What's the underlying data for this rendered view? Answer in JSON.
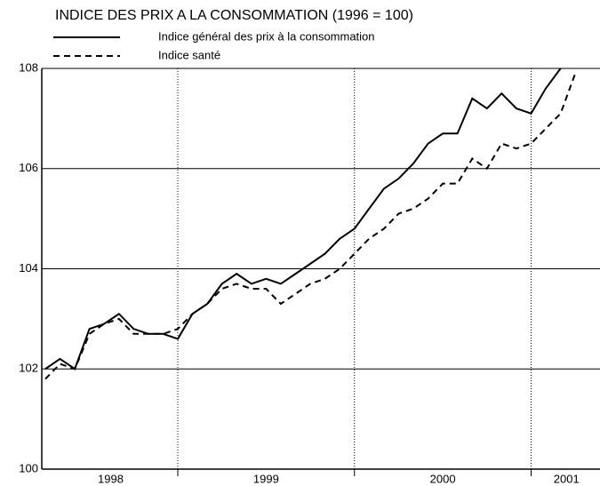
{
  "chart_data": {
    "type": "line",
    "title": "INDICE DES PRIX A LA CONSOMMATION (1996 = 100)",
    "x": [
      1998.25,
      1998.333,
      1998.417,
      1998.5,
      1998.583,
      1998.667,
      1998.75,
      1998.833,
      1998.917,
      1999.0,
      1999.083,
      1999.167,
      1999.25,
      1999.333,
      1999.417,
      1999.5,
      1999.583,
      1999.667,
      1999.75,
      1999.833,
      1999.917,
      2000.0,
      2000.083,
      2000.167,
      2000.25,
      2000.333,
      2000.417,
      2000.5,
      2000.583,
      2000.667,
      2000.75,
      2000.833,
      2000.917,
      2001.0,
      2001.083,
      2001.167,
      2001.25
    ],
    "series": [
      {
        "name": "Indice général des prix à la consommation",
        "color": "#000000",
        "dash": false,
        "values": [
          102.0,
          102.2,
          102.0,
          102.8,
          102.9,
          103.1,
          102.8,
          102.7,
          102.7,
          102.6,
          103.1,
          103.3,
          103.7,
          103.9,
          103.7,
          103.8,
          103.7,
          103.9,
          104.1,
          104.3,
          104.6,
          104.8,
          105.2,
          105.6,
          105.8,
          106.1,
          106.5,
          106.7,
          106.7,
          107.4,
          107.2,
          107.5,
          107.2,
          107.1,
          107.6,
          108.0,
          null
        ]
      },
      {
        "name": "Indice santé",
        "color": "#000000",
        "dash": true,
        "values": [
          101.8,
          102.1,
          102.0,
          102.7,
          102.9,
          103.0,
          102.7,
          102.7,
          102.7,
          102.8,
          103.1,
          103.3,
          103.6,
          103.7,
          103.6,
          103.6,
          103.3,
          103.5,
          103.7,
          103.8,
          104.0,
          104.3,
          104.6,
          104.8,
          105.1,
          105.2,
          105.4,
          105.7,
          105.7,
          106.2,
          106.0,
          106.5,
          106.4,
          106.5,
          106.8,
          107.1,
          107.9
        ]
      }
    ],
    "xlim": [
      1998.23,
      2001.39
    ],
    "xticks": [
      {
        "value": 1998.62,
        "label": "1998"
      },
      {
        "value": 1999.5,
        "label": "1999"
      },
      {
        "value": 2000.5,
        "label": "2000"
      },
      {
        "value": 2001.2,
        "label": "2001"
      }
    ],
    "xgrid": [
      1999,
      2000,
      2001
    ],
    "ylim": [
      100,
      108
    ],
    "yticks": [
      100,
      102,
      104,
      106,
      108
    ],
    "grid": true
  }
}
